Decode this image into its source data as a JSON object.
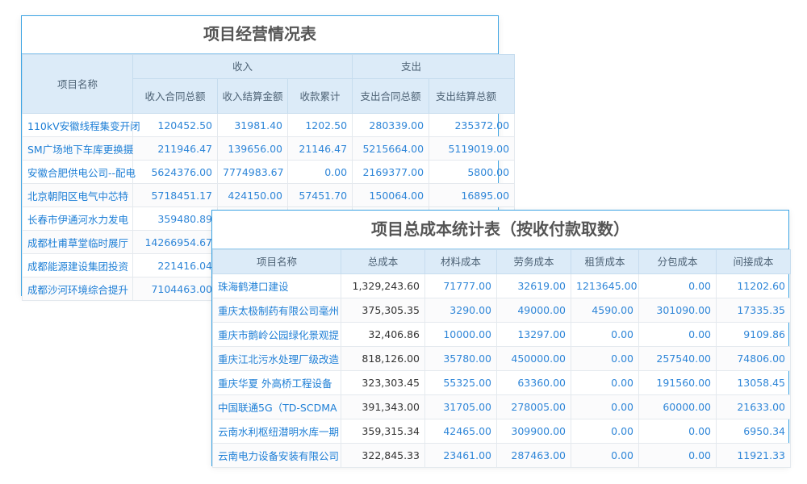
{
  "operations_table": {
    "title": "项目经营情况表",
    "headers": {
      "name": "项目名称",
      "income_group": "收入",
      "expense_group": "支出",
      "income_contract_total": "收入合同总额",
      "income_settlement": "收入结算金额",
      "collection_total": "收款累计",
      "expense_contract_total": "支出合同总额",
      "expense_settlement_total": "支出结算总额"
    },
    "rows": [
      [
        "110kV安徽线程集变开闭",
        "120452.50",
        "31981.40",
        "1202.50",
        "280339.00",
        "235372.00"
      ],
      [
        "SM广场地下车库更换摄",
        "211946.47",
        "139656.00",
        "21146.47",
        "5215664.00",
        "5119019.00"
      ],
      [
        "安徽合肥供电公司--配电",
        "5624376.00",
        "7774983.67",
        "0.00",
        "2169377.00",
        "5800.00"
      ],
      [
        "北京朝阳区电气中芯特",
        "5718451.17",
        "424150.00",
        "57451.70",
        "150064.00",
        "16895.00"
      ],
      [
        "长春市伊通河水力发电",
        "359480.89",
        "",
        "",
        "",
        ""
      ],
      [
        "成都杜甫草堂临时展厅",
        "14266954.67",
        "",
        "",
        "",
        ""
      ],
      [
        "成都能源建设集团投资",
        "221416.04",
        "",
        "",
        "",
        ""
      ],
      [
        "成都沙河环境综合提升",
        "7104463.00",
        "",
        "",
        "",
        ""
      ]
    ]
  },
  "cost_table": {
    "title": "项目总成本统计表（按收付款取数）",
    "headers": [
      "项目名称",
      "总成本",
      "材料成本",
      "劳务成本",
      "租赁成本",
      "分包成本",
      "间接成本"
    ],
    "rows": [
      [
        "珠海鹤港口建设",
        "1,329,243.60",
        "71777.00",
        "32619.00",
        "1213645.00",
        "0.00",
        "11202.60"
      ],
      [
        "重庆太极制药有限公司毫州",
        "375,305.35",
        "3290.00",
        "49000.00",
        "4590.00",
        "301090.00",
        "17335.35"
      ],
      [
        "重庆市鹅岭公园绿化景观提",
        "32,406.86",
        "10000.00",
        "13297.00",
        "0.00",
        "0.00",
        "9109.86"
      ],
      [
        "重庆江北污水处理厂级改造",
        "818,126.00",
        "35780.00",
        "450000.00",
        "0.00",
        "257540.00",
        "74806.00"
      ],
      [
        "重庆华夏 外高桥工程设备",
        "323,303.45",
        "55325.00",
        "63360.00",
        "0.00",
        "191560.00",
        "13058.45"
      ],
      [
        "中国联通5G（TD-SCDMA",
        "391,343.00",
        "31705.00",
        "278005.00",
        "0.00",
        "60000.00",
        "21633.00"
      ],
      [
        "云南水利枢纽潜明水库一期",
        "359,315.34",
        "42465.00",
        "309900.00",
        "0.00",
        "0.00",
        "6950.34"
      ],
      [
        "云南电力设备安装有限公司",
        "322,845.33",
        "23461.00",
        "287463.00",
        "0.00",
        "0.00",
        "11921.33"
      ]
    ]
  },
  "colors": {
    "border": "#3aa3e3",
    "header_bg": "#dcebf8",
    "link": "#1e7fd6",
    "title": "#555555"
  }
}
